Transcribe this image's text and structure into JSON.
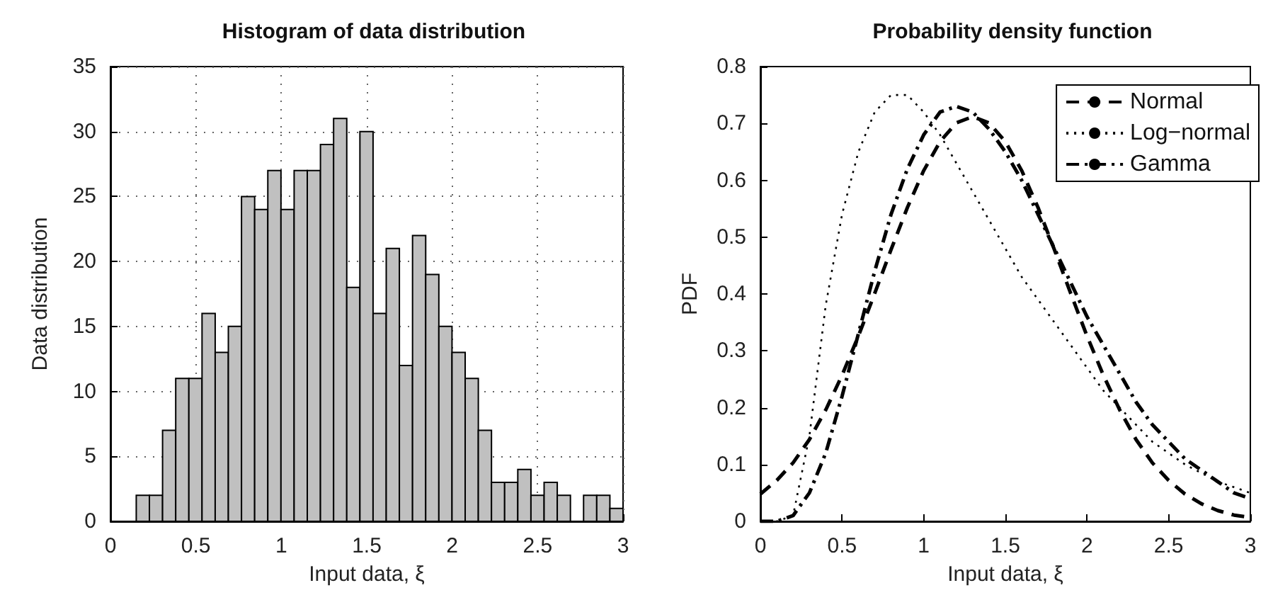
{
  "chart_data": [
    {
      "type": "histogram",
      "title": "Histogram of data distribution",
      "xlabel": "Input data, ξ",
      "ylabel": "Data distribution",
      "color": "#c0c0c0",
      "bins": [
        0.151,
        0.228,
        0.305,
        0.382,
        0.459,
        0.536,
        0.613,
        0.69,
        0.767,
        0.844,
        0.921,
        0.998,
        1.075,
        1.152,
        1.229,
        1.306,
        1.383,
        1.46,
        1.537,
        1.614,
        1.691,
        1.768,
        1.845,
        1.922,
        1.999,
        2.076,
        2.153,
        2.23,
        2.307,
        2.384,
        2.461,
        2.538,
        2.615,
        2.692,
        2.769,
        2.846,
        2.923,
        3.0
      ],
      "values": [
        2,
        2,
        7,
        11,
        11,
        16,
        13,
        15,
        25,
        24,
        27,
        24,
        27,
        27,
        29,
        31,
        18,
        30,
        16,
        21,
        12,
        22,
        19,
        15,
        13,
        11,
        7,
        3,
        3,
        4,
        2,
        3,
        2,
        0,
        2,
        2,
        1
      ],
      "xlim": [
        0,
        3
      ],
      "xticks": [
        0,
        0.5,
        1,
        1.5,
        2,
        2.5,
        3
      ],
      "ylim": [
        0,
        35
      ],
      "yticks": [
        0,
        5,
        10,
        15,
        20,
        25,
        30,
        35
      ],
      "grid": true
    },
    {
      "type": "line",
      "title": "Probability density function",
      "xlabel": "Input data, ξ",
      "ylabel": "PDF",
      "legend": "top right",
      "marker": "none",
      "x": [
        0,
        0.1,
        0.2,
        0.3,
        0.4,
        0.5,
        0.6,
        0.7,
        0.8,
        0.9,
        1.0,
        1.1,
        1.2,
        1.3,
        1.4,
        1.5,
        1.6,
        1.7,
        1.8,
        1.9,
        2.0,
        2.1,
        2.2,
        2.3,
        2.4,
        2.5,
        2.6,
        2.7,
        2.8,
        2.9,
        3.0
      ],
      "series": [
        {
          "name": "Normal",
          "color": "#000000",
          "line_style": "dashed",
          "values": [
            0.048,
            0.072,
            0.103,
            0.144,
            0.196,
            0.257,
            0.326,
            0.401,
            0.478,
            0.552,
            0.617,
            0.668,
            0.701,
            0.712,
            0.701,
            0.668,
            0.617,
            0.552,
            0.478,
            0.401,
            0.326,
            0.257,
            0.196,
            0.144,
            0.103,
            0.072,
            0.048,
            0.031,
            0.019,
            0.011,
            0.007
          ]
        },
        {
          "name": "Log−normal",
          "color": "#000000",
          "line_style": "dotted",
          "values": [
            0,
            0,
            0.01,
            0.15,
            0.38,
            0.54,
            0.65,
            0.72,
            0.75,
            0.75,
            0.72,
            0.68,
            0.63,
            0.58,
            0.53,
            0.48,
            0.43,
            0.39,
            0.35,
            0.31,
            0.27,
            0.23,
            0.2,
            0.17,
            0.14,
            0.12,
            0.1,
            0.085,
            0.07,
            0.06,
            0.05
          ]
        },
        {
          "name": "Gamma",
          "color": "#000000",
          "line_style": "dashdot",
          "values": [
            0,
            0,
            0.01,
            0.05,
            0.12,
            0.22,
            0.33,
            0.44,
            0.54,
            0.62,
            0.68,
            0.72,
            0.73,
            0.72,
            0.69,
            0.65,
            0.6,
            0.54,
            0.48,
            0.42,
            0.36,
            0.31,
            0.26,
            0.21,
            0.17,
            0.14,
            0.11,
            0.09,
            0.07,
            0.05,
            0.04
          ]
        }
      ],
      "xlim": [
        0,
        3
      ],
      "xticks": [
        0,
        0.5,
        1,
        1.5,
        2,
        2.5,
        3
      ],
      "ylim": [
        0,
        0.8
      ],
      "yticks": [
        0,
        0.1,
        0.2,
        0.3,
        0.4,
        0.5,
        0.6,
        0.7,
        0.8
      ],
      "grid": false
    }
  ]
}
